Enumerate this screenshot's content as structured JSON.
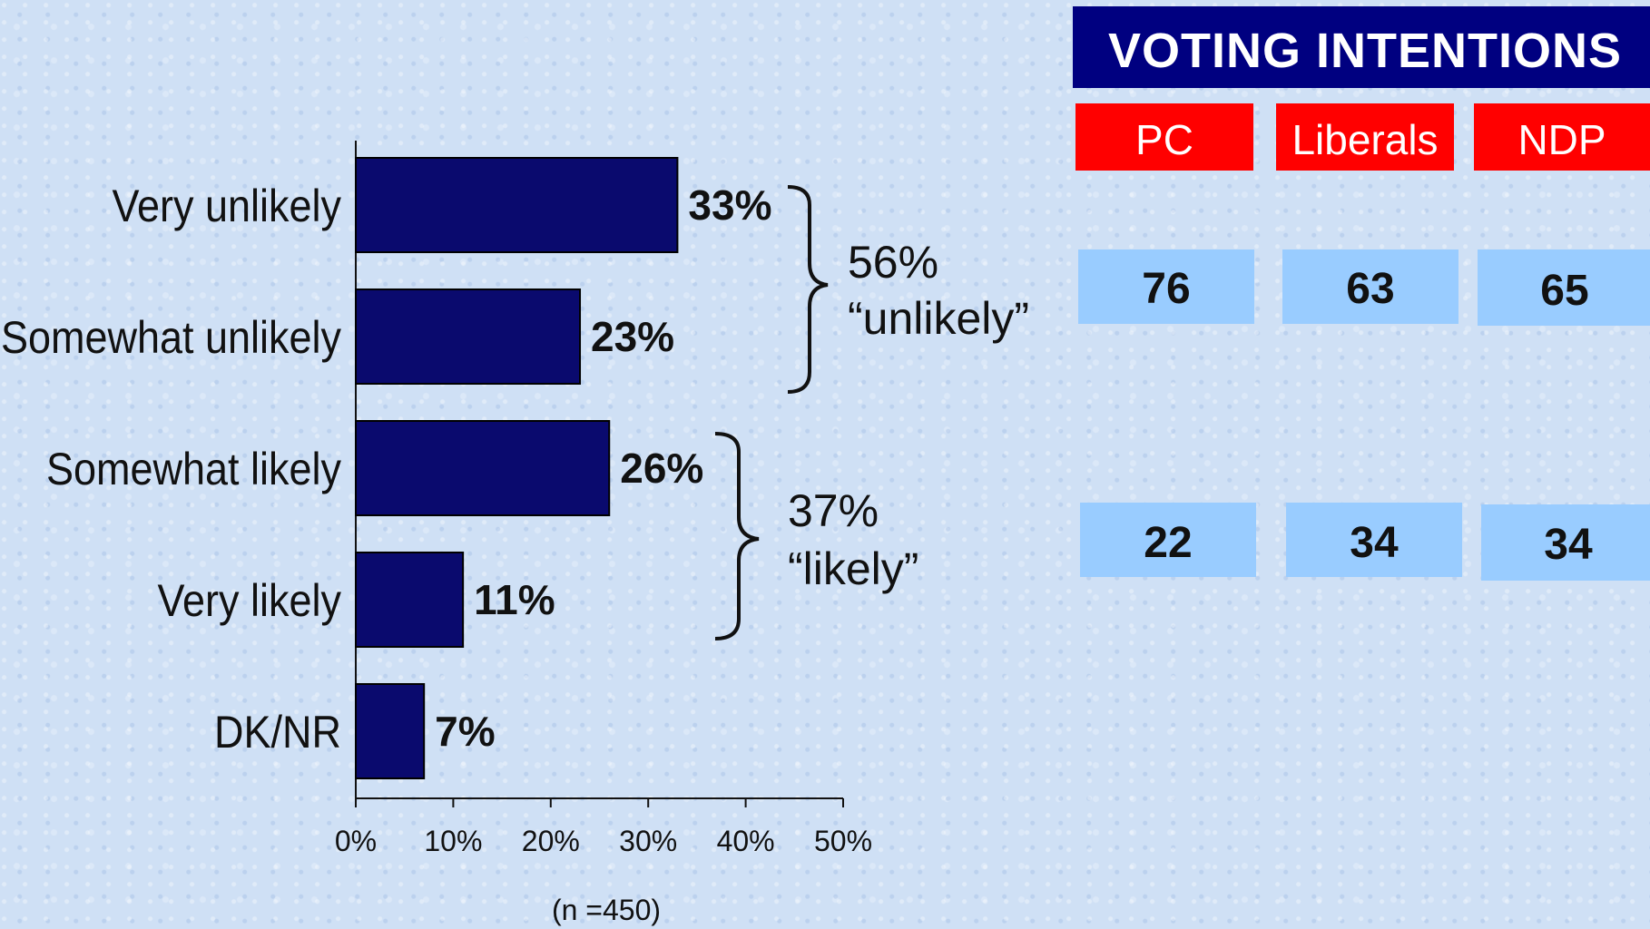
{
  "chart_data": {
    "type": "bar",
    "orientation": "horizontal",
    "categories": [
      "Very unlikely",
      "Somewhat unlikely",
      "Somewhat likely",
      "Very likely",
      "DK/NR"
    ],
    "values": [
      33,
      23,
      26,
      11,
      7
    ],
    "value_labels": [
      "33%",
      "23%",
      "26%",
      "11%",
      "7%"
    ],
    "xlim": [
      0,
      50
    ],
    "x_ticks": [
      "0%",
      "10%",
      "20%",
      "30%",
      "40%",
      "50%"
    ],
    "note": "(n =450)",
    "bar_color": "#0a0a6e",
    "groups": [
      {
        "value": "56%",
        "label": "“unlikely”"
      },
      {
        "value": "37%",
        "label": "“likely”"
      }
    ]
  },
  "voting": {
    "title": "VOTING INTENTIONS",
    "parties": [
      "PC",
      "Liberals",
      "NDP"
    ],
    "rows": [
      [
        "76",
        "63",
        "65"
      ],
      [
        "22",
        "34",
        "34"
      ]
    ],
    "colors": {
      "header": "#000080",
      "party": "#ff0000",
      "cell": "#99ccff"
    }
  }
}
